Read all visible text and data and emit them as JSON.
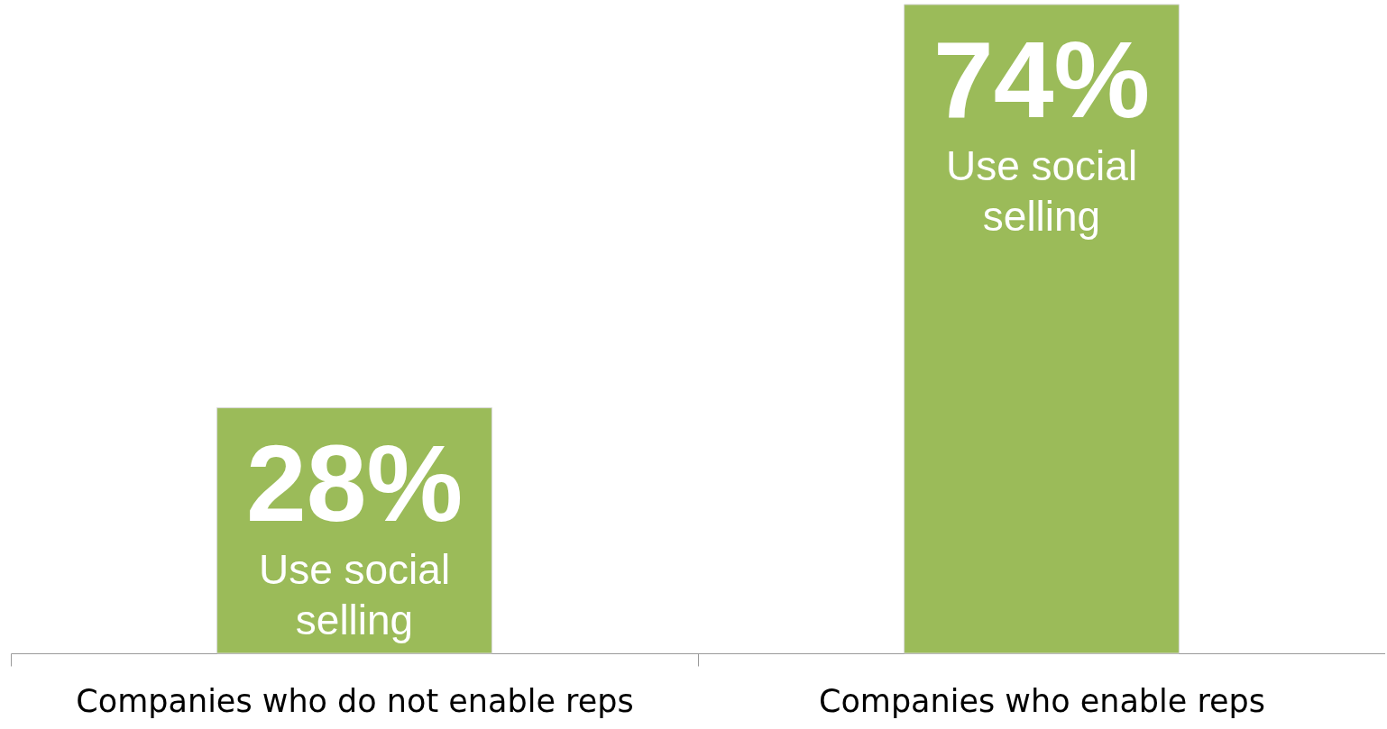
{
  "chart_data": {
    "type": "bar",
    "categories": [
      "Companies who do not enable reps",
      "Companies who enable reps"
    ],
    "values": [
      28,
      74
    ],
    "color": "#9bbb59",
    "value_labels": [
      "28%",
      "74%"
    ],
    "annotations": [
      "Use social selling",
      "Use social selling"
    ]
  }
}
